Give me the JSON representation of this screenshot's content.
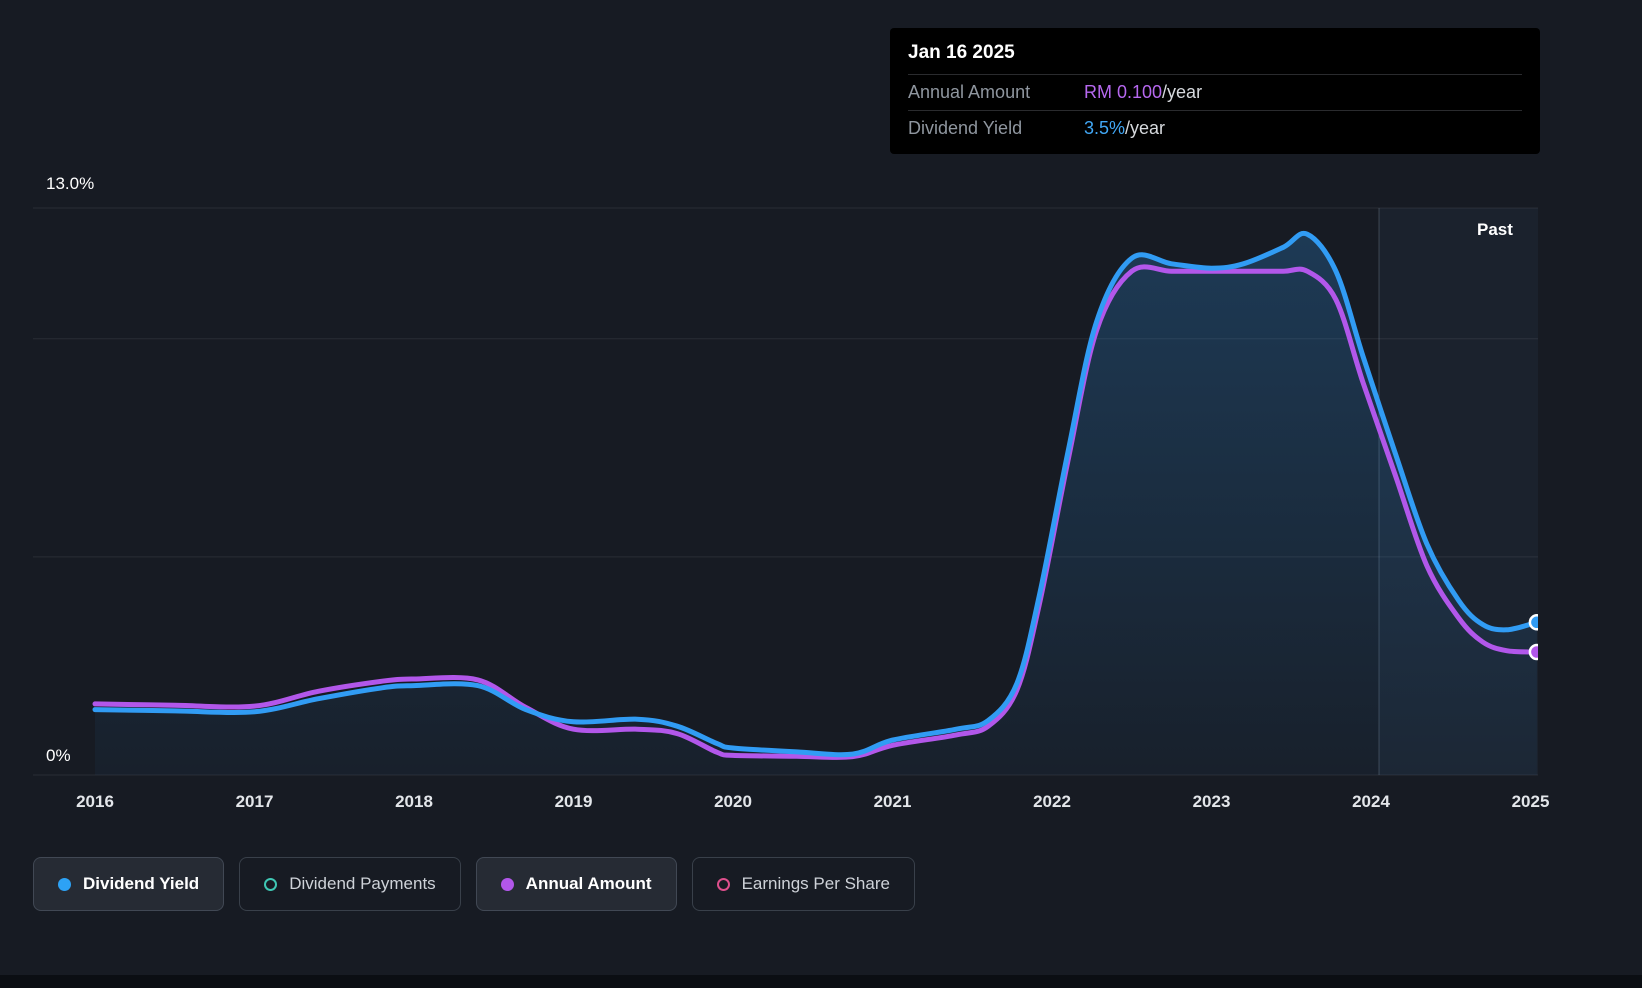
{
  "tooltip": {
    "date": "Jan 16 2025",
    "rows": [
      {
        "label": "Annual Amount",
        "value": "RM 0.100",
        "suffix": "/year",
        "color": "#b668ef"
      },
      {
        "label": "Dividend Yield",
        "value": "3.5%",
        "suffix": "/year",
        "color": "#41a7f5"
      }
    ]
  },
  "past_label": "Past",
  "legend": [
    {
      "label": "Dividend Yield",
      "marker": "filled",
      "color": "#2da2f5",
      "active": true
    },
    {
      "label": "Dividend Payments",
      "marker": "open",
      "color": "#3fc7b4",
      "active": false
    },
    {
      "label": "Annual Amount",
      "marker": "filled",
      "color": "#b257ea",
      "active": true
    },
    {
      "label": "Earnings Per Share",
      "marker": "open",
      "color": "#dd4f8c",
      "active": false
    }
  ],
  "chart_data": {
    "type": "area",
    "title": "",
    "x_labels": [
      "2016",
      "2017",
      "2018",
      "2019",
      "2020",
      "2021",
      "2022",
      "2023",
      "2024",
      "2025"
    ],
    "x_range": [
      2016,
      2025.1
    ],
    "y_range": [
      0,
      13
    ],
    "y_tick_top": "13.0%",
    "y_tick_bottom": "0%",
    "grid_values": [
      13,
      10,
      5,
      0
    ],
    "grid": "horizontal-only",
    "legend_position": "bottom",
    "past_divider_x": 2024.05,
    "series": [
      {
        "name": "Dividend Yield",
        "unit": "%",
        "color": "#319cf4",
        "x": [
          2016,
          2016.5,
          2017,
          2017.4,
          2017.8,
          2018,
          2018.4,
          2018.7,
          2019,
          2019.4,
          2019.65,
          2019.9,
          2020,
          2020.4,
          2020.75,
          2021,
          2021.4,
          2021.6,
          2021.78,
          2021.92,
          2022.1,
          2022.28,
          2022.5,
          2022.75,
          2023,
          2023.2,
          2023.45,
          2023.6,
          2023.78,
          2023.95,
          2024.15,
          2024.35,
          2024.55,
          2024.7,
          2024.85,
          2025.04
        ],
        "values": [
          1.5,
          1.47,
          1.45,
          1.75,
          2.0,
          2.05,
          2.05,
          1.5,
          1.22,
          1.28,
          1.12,
          0.72,
          0.62,
          0.53,
          0.48,
          0.8,
          1.05,
          1.25,
          2.1,
          4.1,
          7.4,
          10.4,
          11.85,
          11.72,
          11.62,
          11.72,
          12.1,
          12.4,
          11.55,
          9.6,
          7.4,
          5.3,
          4.0,
          3.45,
          3.33,
          3.5
        ]
      },
      {
        "name": "Annual Amount",
        "unit": "RM/year (final 0.100)",
        "color": "#b257ea",
        "x": [
          2016,
          2016.5,
          2017,
          2017.4,
          2017.8,
          2018,
          2018.4,
          2018.7,
          2019,
          2019.4,
          2019.65,
          2019.9,
          2020,
          2020.4,
          2020.75,
          2021,
          2021.4,
          2021.6,
          2021.78,
          2021.92,
          2022.1,
          2022.28,
          2022.5,
          2022.75,
          2023,
          2023.2,
          2023.45,
          2023.6,
          2023.78,
          2023.95,
          2024.15,
          2024.35,
          2024.55,
          2024.7,
          2024.85,
          2025.04
        ],
        "values": [
          1.63,
          1.6,
          1.58,
          1.92,
          2.15,
          2.2,
          2.18,
          1.55,
          1.05,
          1.05,
          0.95,
          0.52,
          0.45,
          0.43,
          0.42,
          0.68,
          0.92,
          1.12,
          1.95,
          3.9,
          7.2,
          10.2,
          11.55,
          11.55,
          11.55,
          11.55,
          11.55,
          11.55,
          10.9,
          9.0,
          6.9,
          4.8,
          3.6,
          3.05,
          2.85,
          2.82
        ]
      }
    ]
  }
}
